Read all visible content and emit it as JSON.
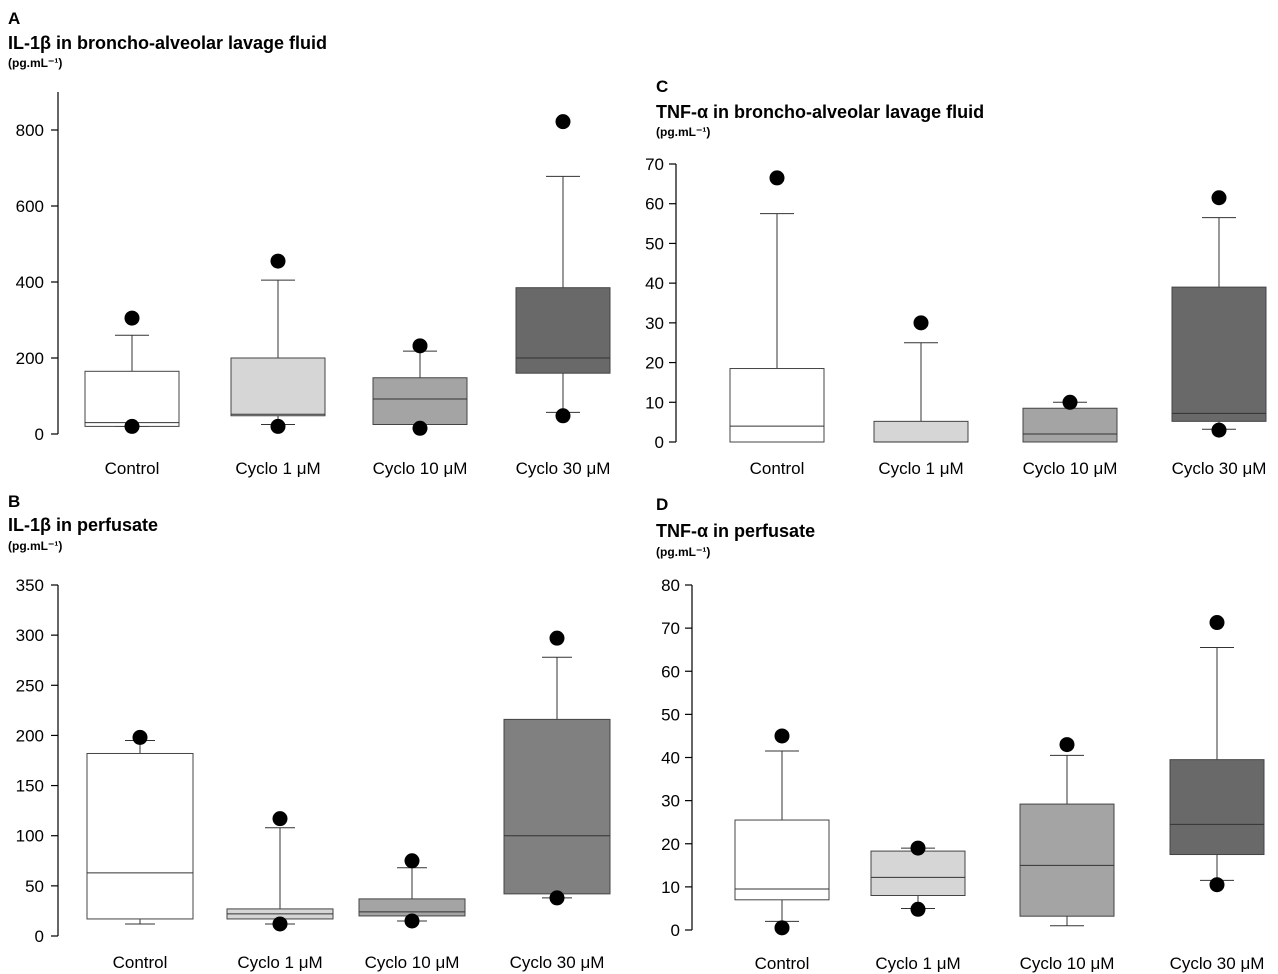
{
  "chart_data": [
    {
      "panel": "A",
      "type": "box",
      "title": "IL-1β in broncho-alveolar lavage fluid",
      "unit": "(pg.mL⁻¹)",
      "categories": [
        "Control",
        "Cyclo 1 μM",
        "Cyclo 10 μM",
        "Cyclo 30 μM"
      ],
      "yticks": [
        0,
        200,
        400,
        600,
        800
      ],
      "ylim": [
        0,
        900
      ],
      "boxes": [
        {
          "q1": 20,
          "median": 30,
          "q3": 165,
          "whisker_low": 20,
          "whisker_high": 260,
          "outliers": [
            305,
            20
          ],
          "color": "#ffffff"
        },
        {
          "q1": 48,
          "median": 52,
          "q3": 200,
          "whisker_low": 25,
          "whisker_high": 405,
          "outliers": [
            455,
            20
          ],
          "color": "#d6d6d6"
        },
        {
          "q1": 25,
          "median": 92,
          "q3": 148,
          "whisker_low": 25,
          "whisker_high": 218,
          "outliers": [
            232,
            15
          ],
          "color": "#a4a4a4"
        },
        {
          "q1": 160,
          "median": 200,
          "q3": 385,
          "whisker_low": 57,
          "whisker_high": 678,
          "outliers": [
            822,
            48
          ],
          "color": "#696969"
        }
      ]
    },
    {
      "panel": "C",
      "type": "box",
      "title": "TNF-α in broncho-alveolar lavage fluid",
      "unit": "(pg.mL⁻¹)",
      "categories": [
        "Control",
        "Cyclo 1 μM",
        "Cyclo 10 μM",
        "Cyclo 30 μM"
      ],
      "yticks": [
        0,
        10,
        20,
        30,
        40,
        50,
        60,
        70
      ],
      "ylim": [
        0,
        70
      ],
      "boxes": [
        {
          "q1": 0,
          "median": 4,
          "q3": 18.5,
          "whisker_low": 0,
          "whisker_high": 57.5,
          "outliers": [
            66.5
          ],
          "color": "#ffffff"
        },
        {
          "q1": 0,
          "median": 0,
          "q3": 5.2,
          "whisker_low": 0,
          "whisker_high": 25,
          "outliers": [
            30
          ],
          "color": "#d6d6d6"
        },
        {
          "q1": 0,
          "median": 2,
          "q3": 8.5,
          "whisker_low": 0,
          "whisker_high": 10,
          "outliers": [
            10
          ],
          "color": "#a4a4a4"
        },
        {
          "q1": 5.2,
          "median": 7.2,
          "q3": 39,
          "whisker_low": 3.2,
          "whisker_high": 56.5,
          "outliers": [
            61.5,
            3
          ],
          "color": "#696969"
        }
      ]
    },
    {
      "panel": "B",
      "type": "box",
      "title": "IL-1β in perfusate",
      "unit": "(pg.mL⁻¹)",
      "categories": [
        "Control",
        "Cyclo 1 μM",
        "Cyclo 10 μM",
        "Cyclo 30 μM"
      ],
      "yticks": [
        0,
        50,
        100,
        150,
        200,
        250,
        300,
        350
      ],
      "ylim": [
        0,
        350
      ],
      "boxes": [
        {
          "q1": 17,
          "median": 63,
          "q3": 182,
          "whisker_low": 12,
          "whisker_high": 195,
          "outliers": [
            198
          ],
          "color": "#ffffff"
        },
        {
          "q1": 17,
          "median": 22,
          "q3": 27,
          "whisker_low": 12,
          "whisker_high": 108,
          "outliers": [
            117,
            12
          ],
          "color": "#d6d6d6"
        },
        {
          "q1": 20,
          "median": 24,
          "q3": 37,
          "whisker_low": 15,
          "whisker_high": 68,
          "outliers": [
            75,
            15
          ],
          "color": "#a4a4a4"
        },
        {
          "q1": 42,
          "median": 100,
          "q3": 216,
          "whisker_low": 38,
          "whisker_high": 278,
          "outliers": [
            297,
            38
          ],
          "color": "#808080"
        }
      ]
    },
    {
      "panel": "D",
      "type": "box",
      "title": "TNF-α in perfusate",
      "unit": "(pg.mL⁻¹)",
      "categories": [
        "Control",
        "Cyclo 1 μM",
        "Cyclo 10 μM",
        "Cyclo 30 μM"
      ],
      "yticks": [
        0,
        10,
        20,
        30,
        40,
        50,
        60,
        70,
        80
      ],
      "ylim": [
        0,
        80
      ],
      "boxes": [
        {
          "q1": 7,
          "median": 9.5,
          "q3": 25.5,
          "whisker_low": 2,
          "whisker_high": 41.5,
          "outliers": [
            45,
            0.5
          ],
          "color": "#ffffff"
        },
        {
          "q1": 8,
          "median": 12.2,
          "q3": 18.3,
          "whisker_low": 5,
          "whisker_high": 19,
          "outliers": [
            19,
            4.8
          ],
          "color": "#d6d6d6"
        },
        {
          "q1": 3.2,
          "median": 15,
          "q3": 29.2,
          "whisker_low": 1,
          "whisker_high": 40.5,
          "outliers": [
            43
          ],
          "color": "#a4a4a4"
        },
        {
          "q1": 17.5,
          "median": 24.5,
          "q3": 39.5,
          "whisker_low": 11.5,
          "whisker_high": 65.5,
          "outliers": [
            71.3,
            10.5
          ],
          "color": "#696969"
        }
      ]
    }
  ]
}
